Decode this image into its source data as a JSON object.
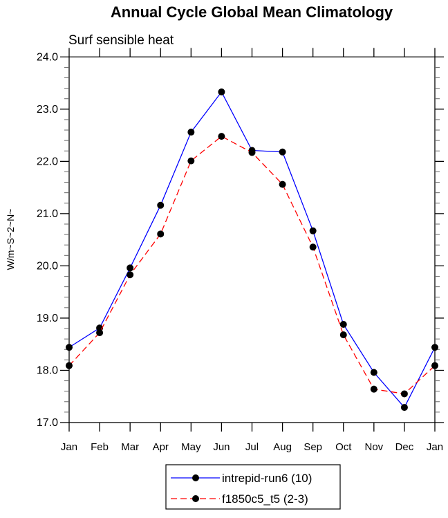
{
  "chart_data": {
    "type": "line",
    "title": "Annual Cycle Global Mean Climatology",
    "subtitle": "Surf sensible heat",
    "xlabel": "",
    "ylabel": "W/m~S~2~N~",
    "categories": [
      "Jan",
      "Feb",
      "Mar",
      "Apr",
      "May",
      "Jun",
      "Jul",
      "Aug",
      "Sep",
      "Oct",
      "Nov",
      "Dec",
      "Jan"
    ],
    "ylim": [
      17.0,
      24.0
    ],
    "yticks": [
      "17.0",
      "18.0",
      "19.0",
      "20.0",
      "21.0",
      "22.0",
      "23.0",
      "24.0"
    ],
    "grid": false,
    "legend_position": "bottom-center",
    "series": [
      {
        "name": "intrepid-run6 (10)",
        "color": "#0000ff",
        "dash": "solid",
        "values": [
          18.44,
          18.81,
          19.96,
          21.16,
          22.56,
          23.33,
          22.21,
          22.18,
          20.67,
          18.88,
          17.96,
          17.29,
          18.44
        ]
      },
      {
        "name": "f1850c5_t5 (2-3)",
        "color": "#ff0000",
        "dash": "dashed",
        "values": [
          18.09,
          18.72,
          19.83,
          20.61,
          22.01,
          22.48,
          22.17,
          21.56,
          20.36,
          18.68,
          17.64,
          17.55,
          18.09
        ]
      }
    ]
  }
}
